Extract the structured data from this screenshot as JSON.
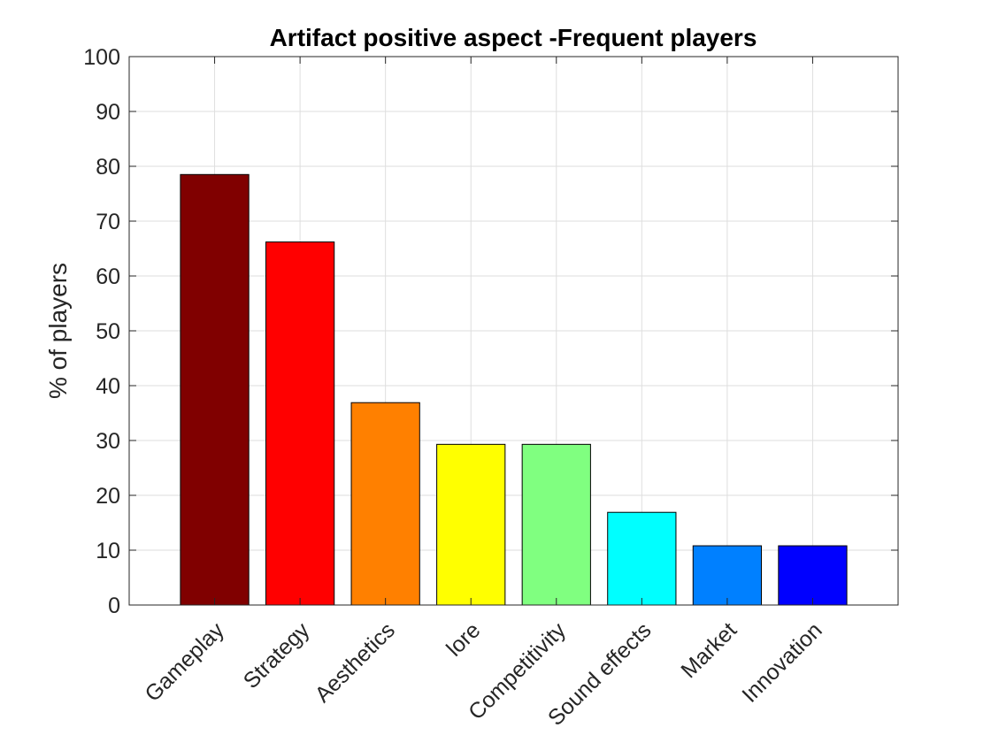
{
  "chart_data": {
    "type": "bar",
    "title": "Artifact positive aspect -Frequent players",
    "xlabel": "",
    "ylabel": "% of players",
    "categories": [
      "Gameplay",
      "Strategy",
      "Aesthetics",
      "lore",
      "Competitivity",
      "Sound effects",
      "Market",
      "Innovation"
    ],
    "values": [
      78.5,
      66.2,
      36.9,
      29.3,
      29.3,
      16.9,
      10.8,
      10.8
    ],
    "colors": [
      "#800000",
      "#ff0000",
      "#ff8000",
      "#ffff00",
      "#80ff80",
      "#00ffff",
      "#0080ff",
      "#0000ff"
    ],
    "ylim": [
      0,
      100
    ],
    "yticks": [
      0,
      10,
      20,
      30,
      40,
      50,
      60,
      70,
      80,
      90,
      100
    ],
    "grid": true,
    "legend": "none"
  }
}
